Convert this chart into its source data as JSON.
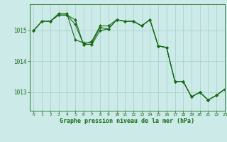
{
  "title": "Graphe pression niveau de la mer (hPa)",
  "background_color": "#cceae7",
  "grid_color": "#aad4d0",
  "line_color": "#1a6b1a",
  "marker_color": "#1a6b1a",
  "xlim": [
    -0.5,
    23
  ],
  "ylim": [
    1012.4,
    1015.85
  ],
  "yticks": [
    1013,
    1014,
    1015
  ],
  "xticks": [
    0,
    1,
    2,
    3,
    4,
    5,
    6,
    7,
    8,
    9,
    10,
    11,
    12,
    13,
    14,
    15,
    16,
    17,
    18,
    19,
    20,
    21,
    22,
    23
  ],
  "series1_x": [
    0,
    1,
    2,
    3,
    4,
    5,
    6,
    7,
    8,
    9,
    10,
    11,
    12,
    13,
    14,
    15,
    16,
    17,
    18,
    19,
    20,
    21,
    22,
    23
  ],
  "series1_y": [
    1015.0,
    1015.3,
    1015.3,
    1015.5,
    1015.5,
    1015.35,
    1014.55,
    1014.65,
    1015.15,
    1015.15,
    1015.35,
    1015.3,
    1015.3,
    1015.15,
    1015.35,
    1014.5,
    1014.45,
    1013.35,
    1013.35,
    1012.85,
    1013.0,
    1012.75,
    1012.9,
    1013.1
  ],
  "series2_x": [
    0,
    1,
    2,
    3,
    4,
    5,
    6,
    7,
    8,
    9,
    10,
    11,
    12,
    13,
    14,
    15,
    16,
    17,
    18,
    19,
    20,
    21,
    22,
    23
  ],
  "series2_y": [
    1015.0,
    1015.3,
    1015.3,
    1015.5,
    1015.5,
    1015.2,
    1014.55,
    1014.55,
    1015.0,
    1015.05,
    1015.35,
    1015.3,
    1015.3,
    1015.15,
    1015.35,
    1014.5,
    1014.45,
    1013.35,
    1013.35,
    1012.85,
    1013.0,
    1012.75,
    1012.9,
    1013.1
  ],
  "series3_x": [
    0,
    1,
    2,
    3,
    4,
    5,
    6,
    7,
    8,
    9,
    10,
    11,
    12,
    13,
    14,
    15,
    16,
    17,
    18,
    19,
    20,
    21,
    22,
    23
  ],
  "series3_y": [
    1015.0,
    1015.3,
    1015.3,
    1015.55,
    1015.55,
    1014.7,
    1014.6,
    1014.6,
    1015.1,
    1015.05,
    1015.35,
    1015.3,
    1015.3,
    1015.15,
    1015.35,
    1014.5,
    1014.45,
    1013.35,
    1013.35,
    1012.85,
    1013.0,
    1012.75,
    1012.9,
    1013.1
  ]
}
